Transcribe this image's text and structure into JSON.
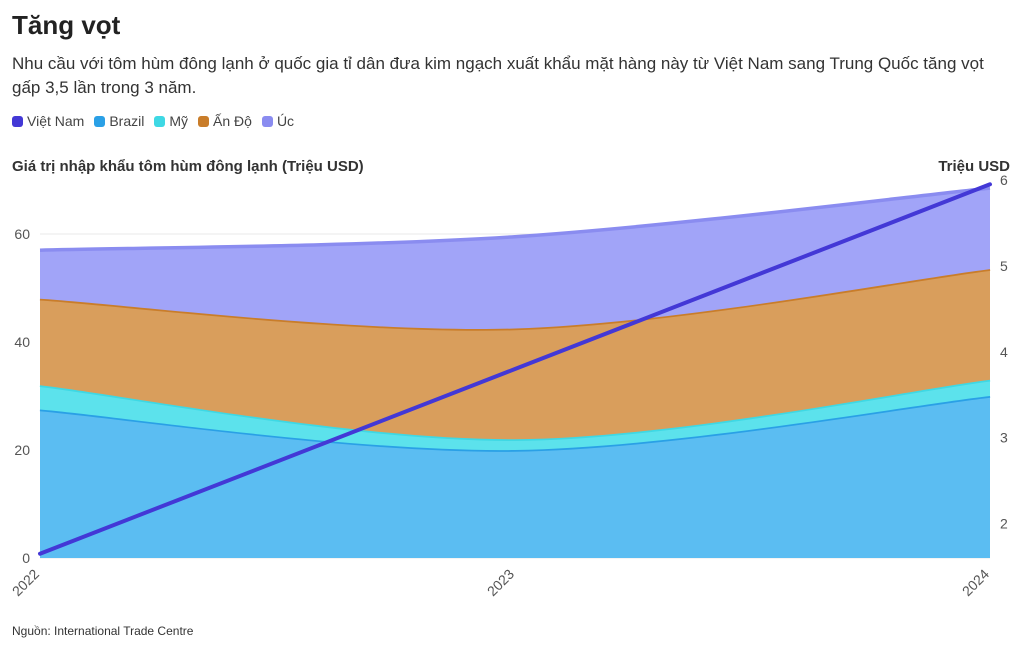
{
  "header": {
    "title": "Tăng vọt",
    "subtitle": "Nhu cầu với tôm hùm đông lạnh ở quốc gia tỉ dân đưa kim ngạch xuất khẩu mặt hàng này từ Việt Nam sang Trung Quốc tăng vọt gấp 3,5 lần trong 3 năm."
  },
  "legend": {
    "items": [
      {
        "label": "Việt Nam",
        "color": "#4338d6"
      },
      {
        "label": "Brazil",
        "color": "#2aa0e6"
      },
      {
        "label": "Mỹ",
        "color": "#3ed8e4"
      },
      {
        "label": "Ấn Độ",
        "color": "#c97d2a"
      },
      {
        "label": "Úc",
        "color": "#8a8cf0"
      }
    ]
  },
  "axes": {
    "left_label": "Giá trị nhập khẩu tôm hùm đông lạnh (Triệu USD)",
    "right_label": "Triệu USD"
  },
  "footer": {
    "source": "Nguồn: International Trade Centre"
  },
  "chart_data": {
    "type": "area",
    "title": "Tăng vọt",
    "xlabel": "",
    "ylabel": "Giá trị nhập khẩu tôm hùm đông lạnh (Triệu USD)",
    "y2label": "Triệu USD",
    "categories": [
      "2022",
      "2023",
      "2024"
    ],
    "ylim": [
      0,
      70
    ],
    "yticks": [
      0,
      20,
      40,
      60
    ],
    "y2lim": [
      1.6,
      6
    ],
    "y2ticks": [
      2,
      3,
      4,
      5,
      6
    ],
    "stacked": true,
    "series": [
      {
        "name": "Brazil",
        "axis": "left",
        "type": "area",
        "color": "#2aa0e6",
        "fill": "#5bbdf2",
        "values": [
          27.5,
          20,
          30
        ]
      },
      {
        "name": "Mỹ",
        "axis": "left",
        "type": "area",
        "color": "#3ed8e4",
        "fill": "#5ce2ec",
        "values": [
          4.5,
          2,
          3
        ]
      },
      {
        "name": "Ấn Độ",
        "axis": "left",
        "type": "area",
        "color": "#c97d2a",
        "fill": "#d99e5c",
        "values": [
          16,
          20.5,
          20.5
        ]
      },
      {
        "name": "Úc",
        "axis": "left",
        "type": "area",
        "color": "#8a8cf0",
        "fill": "#a1a4f8",
        "values": [
          9,
          17,
          15
        ]
      },
      {
        "name": "Việt Nam",
        "axis": "right",
        "type": "line",
        "color": "#4338d6",
        "values": [
          1.65,
          3.8,
          5.95
        ]
      }
    ]
  }
}
